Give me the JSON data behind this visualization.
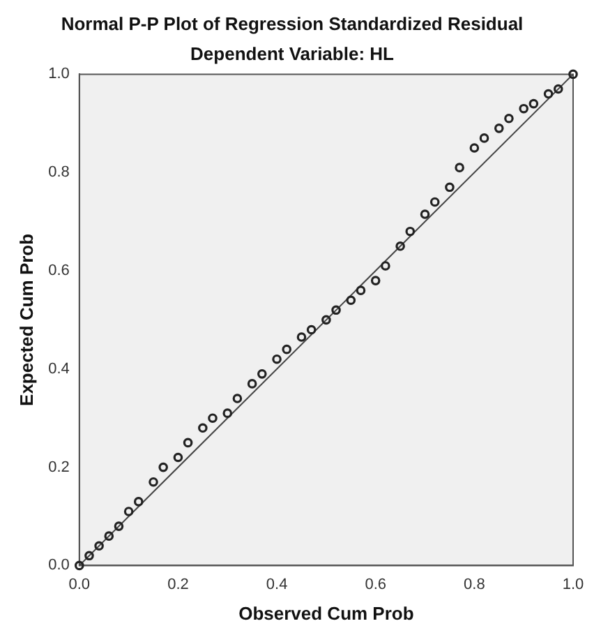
{
  "chart_data": {
    "type": "scatter",
    "title": "Normal P-P Plot of Regression Standardized Residual",
    "subtitle": "Dependent Variable: HL",
    "xlabel": "Observed Cum Prob",
    "ylabel": "Expected Cum Prob",
    "xlim": [
      0,
      1
    ],
    "ylim": [
      0,
      1
    ],
    "xticks": [
      {
        "value": 0,
        "label": "0.0"
      },
      {
        "value": 0.2,
        "label": "0.2"
      },
      {
        "value": 0.4,
        "label": "0.4"
      },
      {
        "value": 0.6,
        "label": "0.6"
      },
      {
        "value": 0.8,
        "label": "0.8"
      },
      {
        "value": 1,
        "label": "1.0"
      }
    ],
    "yticks": [
      {
        "value": 0,
        "label": "0.0"
      },
      {
        "value": 0.2,
        "label": "0.2"
      },
      {
        "value": 0.4,
        "label": "0.4"
      },
      {
        "value": 0.6,
        "label": "0.6"
      },
      {
        "value": 0.8,
        "label": "0.8"
      },
      {
        "value": 1,
        "label": "1.0"
      }
    ],
    "grid": false,
    "legend": false,
    "series": [
      {
        "marker": "circle",
        "color": "#222222",
        "x": [
          0,
          0.02,
          0.04,
          0.06,
          0.08,
          0.1,
          0.12,
          0.15,
          0.17,
          0.2,
          0.22,
          0.25,
          0.27,
          0.3,
          0.32,
          0.35,
          0.37,
          0.4,
          0.42,
          0.45,
          0.47,
          0.5,
          0.52,
          0.55,
          0.57,
          0.6,
          0.62,
          0.65,
          0.67,
          0.7,
          0.72,
          0.75,
          0.77,
          0.8,
          0.82,
          0.85,
          0.87,
          0.9,
          0.92,
          0.95,
          0.97,
          1
        ],
        "values": [
          0,
          0.02,
          0.04,
          0.06,
          0.08,
          0.11,
          0.13,
          0.17,
          0.2,
          0.22,
          0.25,
          0.28,
          0.3,
          0.31,
          0.34,
          0.37,
          0.39,
          0.42,
          0.44,
          0.465,
          0.48,
          0.5,
          0.52,
          0.54,
          0.56,
          0.58,
          0.61,
          0.65,
          0.68,
          0.715,
          0.74,
          0.77,
          0.81,
          0.85,
          0.87,
          0.89,
          0.91,
          0.93,
          0.94,
          0.96,
          0.97,
          1
        ]
      },
      {
        "type": "line",
        "marker": "none",
        "color": "#444444",
        "x": [
          0,
          1
        ],
        "values": [
          0,
          1
        ]
      }
    ]
  }
}
